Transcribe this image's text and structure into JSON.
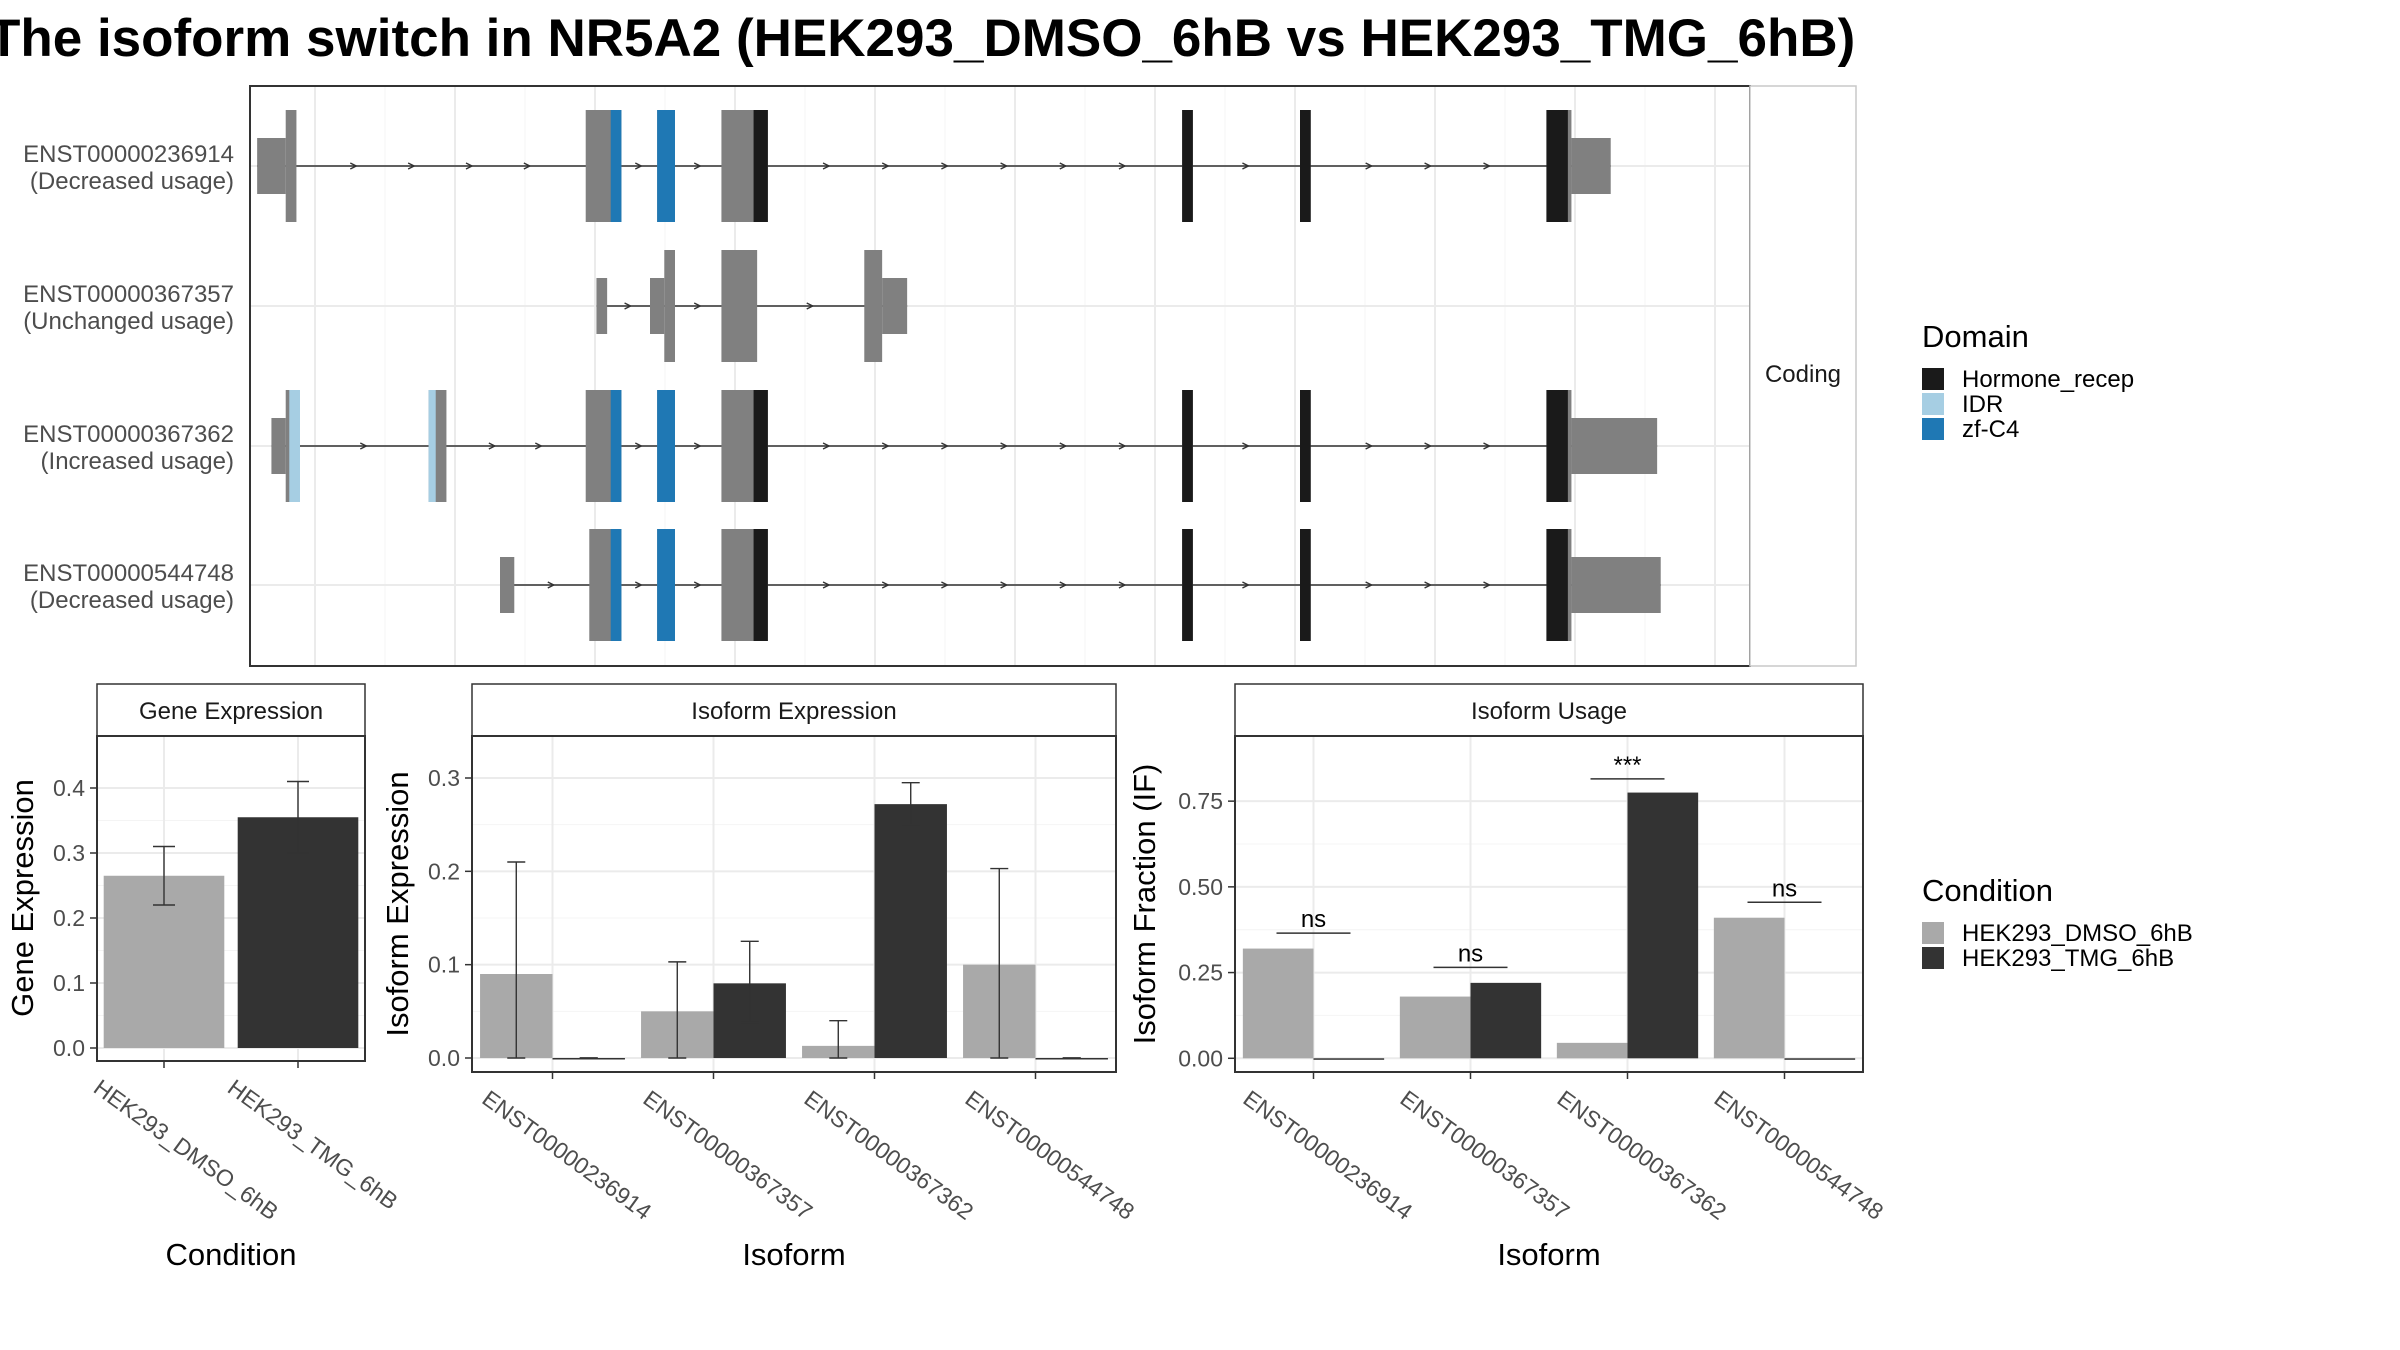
{
  "title": "The isoform switch in NR5A2 (HEK293_DMSO_6hB vs HEK293_TMG_6hB)",
  "colors": {
    "utr": "#808080",
    "hormone_recep": "#1a1a1a",
    "idr": "#a6cee3",
    "zf_c4": "#1f78b4",
    "dmso": "#a9a9a9",
    "tmg": "#333333",
    "grid": "#ebebeb"
  },
  "chart_data": [
    {
      "type": "gene-structure",
      "strip_label": "Coding",
      "x_ticks_count": 11,
      "transcripts": [
        {
          "id": "ENST00000236914",
          "label_line1": "ENST00000236914",
          "label_line2": "(Decreased usage)",
          "utr": [
            [
              0.0,
              0.4
            ],
            [
              4.6,
              4.9
            ],
            [
              6.5,
              6.95
            ],
            [
              17.85,
              18.65
            ]
          ],
          "cds": [
            [
              0.4,
              0.55
            ],
            [
              4.9,
              5.1
            ],
            [
              6.95,
              7.15
            ],
            [
              12.95,
              13.1
            ],
            [
              14.6,
              14.75
            ],
            [
              18.3,
              18.45
            ]
          ],
          "domains": [
            {
              "domain": "zf-C4",
              "span": [
                4.95,
                5.1
              ]
            },
            {
              "domain": "zf-C4",
              "span": [
                5.6,
                5.85
              ]
            },
            {
              "domain": "Hormone_recep",
              "span": [
                6.95,
                7.15
              ]
            },
            {
              "domain": "Hormone_recep",
              "span": [
                12.95,
                13.1
              ]
            },
            {
              "domain": "Hormone_recep",
              "span": [
                14.6,
                14.75
              ]
            },
            {
              "domain": "Hormone_recep",
              "span": [
                18.05,
                18.35
              ]
            }
          ],
          "tall": [
            [
              0.4,
              0.55
            ],
            [
              4.6,
              5.1
            ],
            [
              5.6,
              5.85
            ],
            [
              6.5,
              7.15
            ],
            [
              12.95,
              13.1
            ],
            [
              14.6,
              14.75
            ],
            [
              18.05,
              18.4
            ]
          ],
          "short": [
            [
              0.0,
              0.4
            ],
            [
              18.4,
              18.95
            ]
          ]
        },
        {
          "id": "ENST00000367357",
          "label_line1": "ENST00000367357",
          "label_line2": "(Unchanged usage)",
          "domains": [],
          "tall": [
            [
              5.7,
              5.85
            ],
            [
              6.5,
              7.0
            ],
            [
              8.5,
              8.75
            ]
          ],
          "short": [
            [
              4.75,
              4.9
            ],
            [
              5.5,
              5.7
            ],
            [
              8.75,
              9.1
            ]
          ]
        },
        {
          "id": "ENST00000367362",
          "label_line1": "ENST00000367362",
          "label_line2": "(Increased usage)",
          "domains": [
            {
              "domain": "IDR",
              "span": [
                0.45,
                0.6
              ]
            },
            {
              "domain": "IDR",
              "span": [
                2.4,
                2.5
              ]
            },
            {
              "domain": "zf-C4",
              "span": [
                4.95,
                5.1
              ]
            },
            {
              "domain": "zf-C4",
              "span": [
                5.6,
                5.85
              ]
            },
            {
              "domain": "Hormone_recep",
              "span": [
                6.95,
                7.15
              ]
            },
            {
              "domain": "Hormone_recep",
              "span": [
                12.95,
                13.1
              ]
            },
            {
              "domain": "Hormone_recep",
              "span": [
                14.6,
                14.75
              ]
            },
            {
              "domain": "Hormone_recep",
              "span": [
                18.05,
                18.35
              ]
            }
          ],
          "tall": [
            [
              0.4,
              0.6
            ],
            [
              2.4,
              2.65
            ],
            [
              4.6,
              5.1
            ],
            [
              5.6,
              5.85
            ],
            [
              6.5,
              7.15
            ],
            [
              12.95,
              13.1
            ],
            [
              14.6,
              14.75
            ],
            [
              18.05,
              18.4
            ]
          ],
          "short": [
            [
              0.2,
              0.4
            ],
            [
              18.4,
              19.6
            ]
          ]
        },
        {
          "id": "ENST00000544748",
          "label_line1": "ENST00000544748",
          "label_line2": "(Decreased usage)",
          "domains": [
            {
              "domain": "zf-C4",
              "span": [
                4.95,
                5.1
              ]
            },
            {
              "domain": "zf-C4",
              "span": [
                5.6,
                5.85
              ]
            },
            {
              "domain": "Hormone_recep",
              "span": [
                6.95,
                7.15
              ]
            },
            {
              "domain": "Hormone_recep",
              "span": [
                12.95,
                13.1
              ]
            },
            {
              "domain": "Hormone_recep",
              "span": [
                14.6,
                14.75
              ]
            },
            {
              "domain": "Hormone_recep",
              "span": [
                18.05,
                18.35
              ]
            }
          ],
          "tall": [
            [
              4.65,
              5.1
            ],
            [
              5.6,
              5.85
            ],
            [
              6.5,
              7.15
            ],
            [
              12.95,
              13.1
            ],
            [
              14.6,
              14.75
            ],
            [
              18.05,
              18.4
            ]
          ],
          "short": [
            [
              3.4,
              3.6
            ],
            [
              18.4,
              19.65
            ]
          ]
        }
      ],
      "legend": {
        "title": "Domain",
        "entries": [
          "Hormone_recep",
          "IDR",
          "zf-C4"
        ]
      }
    },
    {
      "type": "bar",
      "strip_label": "Gene Expression",
      "xlabel": "Condition",
      "ylabel": "Gene Expression",
      "ylim": [
        -0.02,
        0.48
      ],
      "yticks": [
        "0.0",
        "0.1",
        "0.2",
        "0.3",
        "0.4"
      ],
      "categories": [
        "HEK293_DMSO_6hB",
        "HEK293_TMG_6hB"
      ],
      "values": [
        0.265,
        0.355
      ],
      "errors": [
        [
          0.22,
          0.31
        ],
        [
          0.3,
          0.41
        ]
      ]
    },
    {
      "type": "bar",
      "strip_label": "Isoform Expression",
      "xlabel": "Isoform",
      "ylabel": "Isoform Expression",
      "ylim": [
        -0.015,
        0.345
      ],
      "yticks": [
        "0.0",
        "0.1",
        "0.2",
        "0.3"
      ],
      "categories": [
        "ENST00000236914",
        "ENST00000367357",
        "ENST00000367362",
        "ENST00000544748"
      ],
      "series": [
        {
          "condition": "HEK293_DMSO_6hB",
          "values": [
            0.09,
            0.05,
            0.013,
            0.1
          ],
          "errors": [
            [
              0.0,
              0.21
            ],
            [
              0.0,
              0.103
            ],
            [
              0.0,
              0.04
            ],
            [
              0.0,
              0.203
            ]
          ]
        },
        {
          "condition": "HEK293_TMG_6hB",
          "values": [
            0.0,
            0.08,
            0.272,
            0.0
          ],
          "errors": [
            [
              0.0,
              0.0
            ],
            [
              0.038,
              0.125
            ],
            [
              0.25,
              0.295
            ],
            [
              0.0,
              0.0
            ]
          ]
        }
      ]
    },
    {
      "type": "bar",
      "strip_label": "Isoform Usage",
      "xlabel": "Isoform",
      "ylabel": "Isoform Fraction (IF)",
      "ylim": [
        -0.04,
        0.94
      ],
      "yticks": [
        "0.00",
        "0.25",
        "0.50",
        "0.75"
      ],
      "categories": [
        "ENST00000236914",
        "ENST00000367357",
        "ENST00000367362",
        "ENST00000544748"
      ],
      "series": [
        {
          "condition": "HEK293_DMSO_6hB",
          "values": [
            0.32,
            0.18,
            0.045,
            0.41
          ]
        },
        {
          "condition": "HEK293_TMG_6hB",
          "values": [
            0.0,
            0.22,
            0.775,
            0.0
          ]
        }
      ],
      "significance": [
        {
          "label": "ns",
          "y": 0.365
        },
        {
          "label": "ns",
          "y": 0.265
        },
        {
          "label": "***",
          "y": 0.815
        },
        {
          "label": "ns",
          "y": 0.455
        }
      ],
      "legend": {
        "title": "Condition",
        "entries": [
          "HEK293_DMSO_6hB",
          "HEK293_TMG_6hB"
        ]
      }
    }
  ]
}
